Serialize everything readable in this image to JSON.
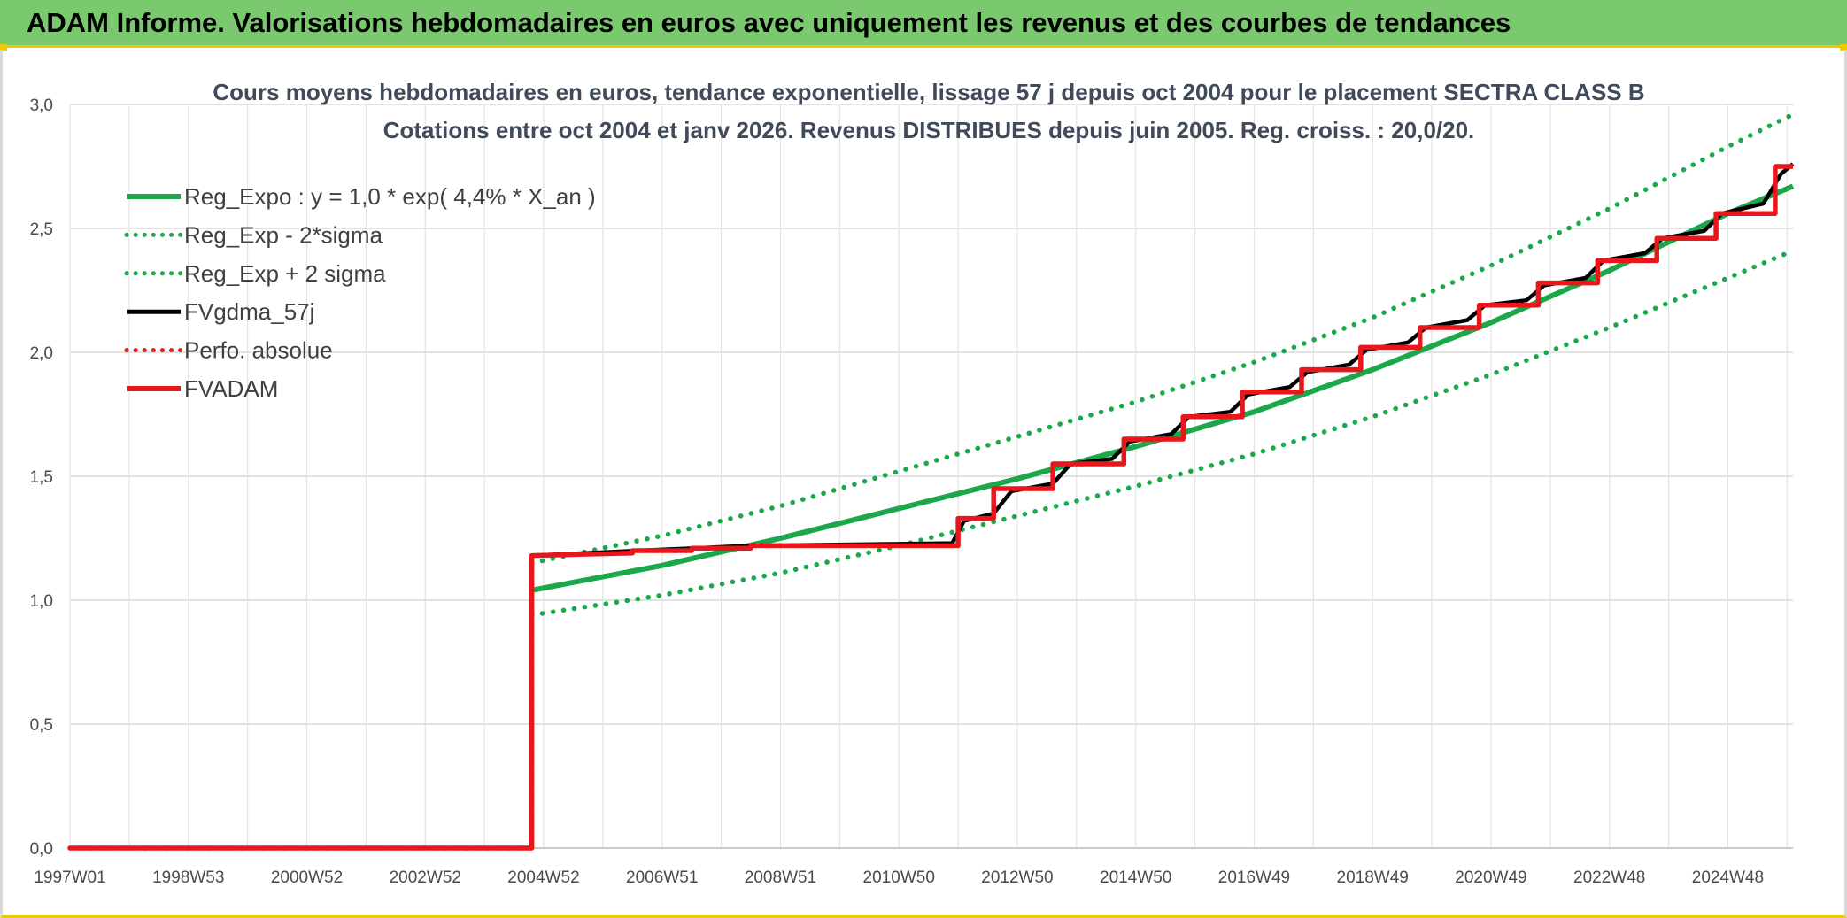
{
  "banner": {
    "title": "ADAM Informe. Valorisations hebdomadaires en euros avec uniquement les revenus et des courbes de tendances"
  },
  "colors": {
    "banner_bg": "#7ac96e",
    "accent_border": "#f0c800",
    "green": "#1aa84a",
    "red": "#e8171c",
    "black": "#000000"
  },
  "chart_data": {
    "type": "line",
    "title": "Cours moyens hebdomadaires en euros, tendance exponentielle, lissage 57 j depuis oct 2004 pour le placement SECTRA CLASS B",
    "subtitle": "Cotations entre oct 2004 et janv 2026. Revenus DISTRIBUES depuis juin 2005. Reg. croiss. : 20,0/20.",
    "xlim": [
      1997.0,
      2026.1
    ],
    "ylim": [
      0,
      3.0
    ],
    "yticks": [
      "0,0",
      "0,5",
      "1,0",
      "1,5",
      "2,0",
      "2,5",
      "3,0"
    ],
    "xtick_labels": [
      {
        "label": "1997W01",
        "x": 1997.0
      },
      {
        "label": "1998W53",
        "x": 1999.0
      },
      {
        "label": "2000W52",
        "x": 2001.0
      },
      {
        "label": "2002W52",
        "x": 2003.0
      },
      {
        "label": "2004W52",
        "x": 2005.0
      },
      {
        "label": "2006W51",
        "x": 2007.0
      },
      {
        "label": "2008W51",
        "x": 2009.0
      },
      {
        "label": "2010W50",
        "x": 2011.0
      },
      {
        "label": "2012W50",
        "x": 2013.0
      },
      {
        "label": "2014W50",
        "x": 2015.0
      },
      {
        "label": "2016W49",
        "x": 2017.0
      },
      {
        "label": "2018W49",
        "x": 2019.0
      },
      {
        "label": "2020W49",
        "x": 2021.0
      },
      {
        "label": "2022W48",
        "x": 2023.0
      },
      {
        "label": "2024W48",
        "x": 2025.0
      }
    ],
    "grid": true,
    "legend_position": "top-left",
    "series": [
      {
        "name": "Reg_Expo : y = 1,0 * exp( 4,4% *  X_an )",
        "style": "solid",
        "color": "#1aa84a",
        "points": [
          [
            2004.8,
            1.04
          ],
          [
            2007.0,
            1.14
          ],
          [
            2009.0,
            1.25
          ],
          [
            2011.0,
            1.37
          ],
          [
            2013.0,
            1.49
          ],
          [
            2015.0,
            1.62
          ],
          [
            2017.0,
            1.76
          ],
          [
            2019.0,
            1.93
          ],
          [
            2021.0,
            2.12
          ],
          [
            2023.0,
            2.33
          ],
          [
            2025.0,
            2.56
          ],
          [
            2026.1,
            2.67
          ]
        ]
      },
      {
        "name": "Reg_Exp - 2*sigma",
        "style": "dotted",
        "color": "#1aa84a",
        "points": [
          [
            2004.8,
            0.94
          ],
          [
            2007.0,
            1.02
          ],
          [
            2009.0,
            1.11
          ],
          [
            2011.0,
            1.22
          ],
          [
            2013.0,
            1.34
          ],
          [
            2015.0,
            1.46
          ],
          [
            2017.0,
            1.59
          ],
          [
            2019.0,
            1.74
          ],
          [
            2021.0,
            1.91
          ],
          [
            2023.0,
            2.1
          ],
          [
            2025.0,
            2.3
          ],
          [
            2026.1,
            2.41
          ]
        ]
      },
      {
        "name": "Reg_Exp + 2 sigma",
        "style": "dotted",
        "color": "#1aa84a",
        "points": [
          [
            2004.8,
            1.15
          ],
          [
            2007.0,
            1.26
          ],
          [
            2009.0,
            1.38
          ],
          [
            2011.0,
            1.52
          ],
          [
            2013.0,
            1.66
          ],
          [
            2015.0,
            1.8
          ],
          [
            2017.0,
            1.96
          ],
          [
            2019.0,
            2.14
          ],
          [
            2021.0,
            2.35
          ],
          [
            2023.0,
            2.58
          ],
          [
            2025.0,
            2.83
          ],
          [
            2026.1,
            2.96
          ]
        ]
      },
      {
        "name": "FVgdma_57j",
        "style": "solid",
        "color": "#000000",
        "points": [
          [
            2004.8,
            1.18
          ],
          [
            2006.6,
            1.2
          ],
          [
            2008.5,
            1.22
          ],
          [
            2011.9,
            1.23
          ],
          [
            2012.1,
            1.32
          ],
          [
            2012.6,
            1.35
          ],
          [
            2012.9,
            1.44
          ],
          [
            2013.6,
            1.47
          ],
          [
            2013.9,
            1.55
          ],
          [
            2014.6,
            1.57
          ],
          [
            2014.9,
            1.64
          ],
          [
            2015.6,
            1.67
          ],
          [
            2015.9,
            1.74
          ],
          [
            2016.6,
            1.76
          ],
          [
            2016.9,
            1.83
          ],
          [
            2017.6,
            1.86
          ],
          [
            2017.9,
            1.92
          ],
          [
            2018.6,
            1.95
          ],
          [
            2018.9,
            2.01
          ],
          [
            2019.6,
            2.04
          ],
          [
            2019.9,
            2.1
          ],
          [
            2020.6,
            2.13
          ],
          [
            2020.9,
            2.19
          ],
          [
            2021.6,
            2.21
          ],
          [
            2021.9,
            2.27
          ],
          [
            2022.6,
            2.3
          ],
          [
            2022.9,
            2.37
          ],
          [
            2023.6,
            2.4
          ],
          [
            2023.9,
            2.46
          ],
          [
            2024.6,
            2.49
          ],
          [
            2024.9,
            2.56
          ],
          [
            2025.6,
            2.6
          ],
          [
            2025.9,
            2.72
          ],
          [
            2026.1,
            2.76
          ]
        ]
      },
      {
        "name": "Perfo. absolue",
        "style": "dotted",
        "color": "#e8171c",
        "points": [
          [
            1997.0,
            0.0
          ],
          [
            2004.8,
            0.0
          ],
          [
            2004.8,
            1.18
          ],
          [
            2006.5,
            1.19
          ],
          [
            2006.5,
            1.2
          ],
          [
            2007.5,
            1.2
          ],
          [
            2007.5,
            1.21
          ],
          [
            2008.5,
            1.21
          ],
          [
            2008.5,
            1.22
          ],
          [
            2012.0,
            1.22
          ],
          [
            2012.0,
            1.33
          ],
          [
            2012.6,
            1.33
          ],
          [
            2012.6,
            1.45
          ],
          [
            2013.6,
            1.45
          ],
          [
            2013.6,
            1.55
          ],
          [
            2014.8,
            1.55
          ],
          [
            2014.8,
            1.65
          ],
          [
            2015.8,
            1.65
          ],
          [
            2015.8,
            1.74
          ],
          [
            2016.8,
            1.74
          ],
          [
            2016.8,
            1.84
          ],
          [
            2017.8,
            1.84
          ],
          [
            2017.8,
            1.93
          ],
          [
            2018.8,
            1.93
          ],
          [
            2018.8,
            2.02
          ],
          [
            2019.8,
            2.02
          ],
          [
            2019.8,
            2.1
          ],
          [
            2020.8,
            2.1
          ],
          [
            2020.8,
            2.19
          ],
          [
            2021.8,
            2.19
          ],
          [
            2021.8,
            2.28
          ],
          [
            2022.8,
            2.28
          ],
          [
            2022.8,
            2.37
          ],
          [
            2023.8,
            2.37
          ],
          [
            2023.8,
            2.46
          ],
          [
            2024.8,
            2.46
          ],
          [
            2024.8,
            2.56
          ],
          [
            2025.8,
            2.56
          ],
          [
            2025.8,
            2.75
          ],
          [
            2026.1,
            2.75
          ]
        ]
      },
      {
        "name": "FVADAM",
        "style": "solid",
        "color": "#e8171c",
        "points": [
          [
            1997.0,
            0.0
          ],
          [
            2004.8,
            0.0
          ],
          [
            2004.8,
            1.18
          ],
          [
            2006.5,
            1.19
          ],
          [
            2006.5,
            1.2
          ],
          [
            2007.5,
            1.2
          ],
          [
            2007.5,
            1.21
          ],
          [
            2008.5,
            1.21
          ],
          [
            2008.5,
            1.22
          ],
          [
            2012.0,
            1.22
          ],
          [
            2012.0,
            1.33
          ],
          [
            2012.6,
            1.33
          ],
          [
            2012.6,
            1.45
          ],
          [
            2013.6,
            1.45
          ],
          [
            2013.6,
            1.55
          ],
          [
            2014.8,
            1.55
          ],
          [
            2014.8,
            1.65
          ],
          [
            2015.8,
            1.65
          ],
          [
            2015.8,
            1.74
          ],
          [
            2016.8,
            1.74
          ],
          [
            2016.8,
            1.84
          ],
          [
            2017.8,
            1.84
          ],
          [
            2017.8,
            1.93
          ],
          [
            2018.8,
            1.93
          ],
          [
            2018.8,
            2.02
          ],
          [
            2019.8,
            2.02
          ],
          [
            2019.8,
            2.1
          ],
          [
            2020.8,
            2.1
          ],
          [
            2020.8,
            2.19
          ],
          [
            2021.8,
            2.19
          ],
          [
            2021.8,
            2.28
          ],
          [
            2022.8,
            2.28
          ],
          [
            2022.8,
            2.37
          ],
          [
            2023.8,
            2.37
          ],
          [
            2023.8,
            2.46
          ],
          [
            2024.8,
            2.46
          ],
          [
            2024.8,
            2.56
          ],
          [
            2025.8,
            2.56
          ],
          [
            2025.8,
            2.75
          ],
          [
            2026.1,
            2.75
          ]
        ]
      }
    ]
  }
}
